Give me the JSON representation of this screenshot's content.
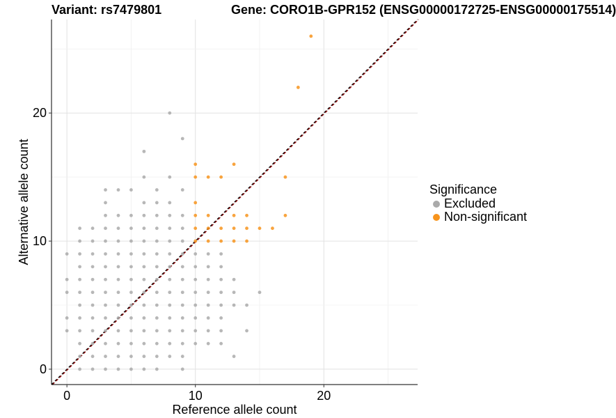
{
  "chart_data": {
    "type": "scatter",
    "title_left": "Variant: rs7479801",
    "title_right": "Gene: CORO1B-GPR152 (ENSG00000172725-ENSG00000175514)",
    "xlabel": "Reference allele count",
    "ylabel": "Alternative allele count",
    "xlim": [
      -1.2,
      27.3
    ],
    "ylim": [
      -1.2,
      27.3
    ],
    "x_ticks": [
      0,
      10,
      20
    ],
    "y_ticks": [
      0,
      10,
      20
    ],
    "grid": true,
    "reference_line": {
      "slope": 1,
      "intercept": 0,
      "style": "dashed",
      "colors": [
        "#000000",
        "#8b0000"
      ]
    },
    "legend": {
      "title": "Significance",
      "position": "right",
      "entries": [
        {
          "label": "Excluded",
          "color": "#aaaaaa"
        },
        {
          "label": "Non-significant",
          "color": "#f7941d"
        }
      ]
    },
    "series": [
      {
        "name": "Excluded",
        "color": "#aaaaaa",
        "points": [
          [
            0,
            3
          ],
          [
            0,
            4
          ],
          [
            0,
            6
          ],
          [
            0,
            7
          ],
          [
            0,
            9
          ],
          [
            1,
            0
          ],
          [
            1,
            1
          ],
          [
            1,
            2
          ],
          [
            1,
            3
          ],
          [
            1,
            4
          ],
          [
            1,
            5
          ],
          [
            1,
            6
          ],
          [
            1,
            7
          ],
          [
            1,
            8
          ],
          [
            1,
            9
          ],
          [
            1,
            10
          ],
          [
            1,
            11
          ],
          [
            2,
            0
          ],
          [
            2,
            1
          ],
          [
            2,
            2
          ],
          [
            2,
            3
          ],
          [
            2,
            4
          ],
          [
            2,
            5
          ],
          [
            2,
            6
          ],
          [
            2,
            7
          ],
          [
            2,
            8
          ],
          [
            2,
            9
          ],
          [
            2,
            10
          ],
          [
            2,
            11
          ],
          [
            3,
            0
          ],
          [
            3,
            1
          ],
          [
            3,
            2
          ],
          [
            3,
            3
          ],
          [
            3,
            4
          ],
          [
            3,
            5
          ],
          [
            3,
            6
          ],
          [
            3,
            7
          ],
          [
            3,
            8
          ],
          [
            3,
            9
          ],
          [
            3,
            10
          ],
          [
            3,
            11
          ],
          [
            3,
            12
          ],
          [
            3,
            13
          ],
          [
            3,
            14
          ],
          [
            4,
            0
          ],
          [
            4,
            1
          ],
          [
            4,
            2
          ],
          [
            4,
            3
          ],
          [
            4,
            4
          ],
          [
            4,
            5
          ],
          [
            4,
            6
          ],
          [
            4,
            7
          ],
          [
            4,
            8
          ],
          [
            4,
            9
          ],
          [
            4,
            10
          ],
          [
            4,
            11
          ],
          [
            4,
            12
          ],
          [
            4,
            14
          ],
          [
            5,
            0
          ],
          [
            5,
            1
          ],
          [
            5,
            2
          ],
          [
            5,
            3
          ],
          [
            5,
            4
          ],
          [
            5,
            5
          ],
          [
            5,
            6
          ],
          [
            5,
            7
          ],
          [
            5,
            8
          ],
          [
            5,
            9
          ],
          [
            5,
            10
          ],
          [
            5,
            11
          ],
          [
            5,
            12
          ],
          [
            5,
            14
          ],
          [
            6,
            0
          ],
          [
            6,
            1
          ],
          [
            6,
            2
          ],
          [
            6,
            3
          ],
          [
            6,
            4
          ],
          [
            6,
            5
          ],
          [
            6,
            6
          ],
          [
            6,
            7
          ],
          [
            6,
            8
          ],
          [
            6,
            9
          ],
          [
            6,
            10
          ],
          [
            6,
            11
          ],
          [
            6,
            12
          ],
          [
            6,
            13
          ],
          [
            6,
            15
          ],
          [
            6,
            17
          ],
          [
            7,
            0
          ],
          [
            7,
            1
          ],
          [
            7,
            2
          ],
          [
            7,
            3
          ],
          [
            7,
            4
          ],
          [
            7,
            5
          ],
          [
            7,
            6
          ],
          [
            7,
            7
          ],
          [
            7,
            8
          ],
          [
            7,
            9
          ],
          [
            7,
            10
          ],
          [
            7,
            11
          ],
          [
            7,
            12
          ],
          [
            7,
            13
          ],
          [
            7,
            14
          ],
          [
            8,
            1
          ],
          [
            8,
            2
          ],
          [
            8,
            3
          ],
          [
            8,
            4
          ],
          [
            8,
            5
          ],
          [
            8,
            6
          ],
          [
            8,
            7
          ],
          [
            8,
            8
          ],
          [
            8,
            9
          ],
          [
            8,
            10
          ],
          [
            8,
            11
          ],
          [
            8,
            12
          ],
          [
            8,
            13
          ],
          [
            8,
            15
          ],
          [
            8,
            20
          ],
          [
            9,
            0
          ],
          [
            9,
            1
          ],
          [
            9,
            2
          ],
          [
            9,
            3
          ],
          [
            9,
            4
          ],
          [
            9,
            5
          ],
          [
            9,
            6
          ],
          [
            9,
            7
          ],
          [
            9,
            8
          ],
          [
            9,
            9
          ],
          [
            9,
            10
          ],
          [
            9,
            11
          ],
          [
            9,
            12
          ],
          [
            9,
            14
          ],
          [
            9,
            18
          ],
          [
            10,
            2
          ],
          [
            10,
            3
          ],
          [
            10,
            4
          ],
          [
            10,
            5
          ],
          [
            10,
            6
          ],
          [
            10,
            7
          ],
          [
            10,
            8
          ],
          [
            10,
            9
          ],
          [
            11,
            2
          ],
          [
            11,
            3
          ],
          [
            11,
            4
          ],
          [
            11,
            5
          ],
          [
            11,
            6
          ],
          [
            11,
            7
          ],
          [
            11,
            8
          ],
          [
            11,
            9
          ],
          [
            12,
            2
          ],
          [
            12,
            3
          ],
          [
            12,
            4
          ],
          [
            12,
            5
          ],
          [
            12,
            6
          ],
          [
            12,
            7
          ],
          [
            12,
            8
          ],
          [
            12,
            9
          ],
          [
            13,
            1
          ],
          [
            13,
            5
          ],
          [
            13,
            6
          ],
          [
            13,
            7
          ],
          [
            14,
            3
          ],
          [
            14,
            5
          ],
          [
            15,
            6
          ]
        ]
      },
      {
        "name": "Non-significant",
        "color": "#f7941d",
        "points": [
          [
            10,
            10
          ],
          [
            10,
            11
          ],
          [
            10,
            12
          ],
          [
            10,
            13
          ],
          [
            10,
            15
          ],
          [
            10,
            16
          ],
          [
            11,
            10
          ],
          [
            11,
            11
          ],
          [
            11,
            12
          ],
          [
            11,
            15
          ],
          [
            12,
            10
          ],
          [
            12,
            11
          ],
          [
            12,
            15
          ],
          [
            13,
            10
          ],
          [
            13,
            11
          ],
          [
            13,
            12
          ],
          [
            13,
            16
          ],
          [
            14,
            10
          ],
          [
            14,
            11
          ],
          [
            14,
            12
          ],
          [
            15,
            11
          ],
          [
            16,
            11
          ],
          [
            17,
            12
          ],
          [
            17,
            15
          ],
          [
            18,
            22
          ],
          [
            19,
            26
          ]
        ]
      }
    ]
  }
}
